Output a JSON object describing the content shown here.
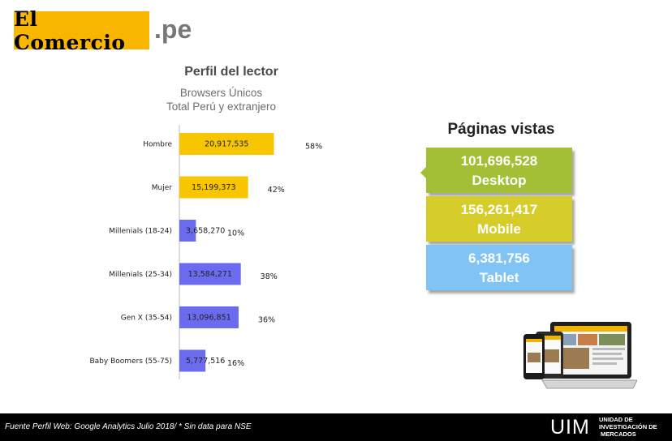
{
  "header": {
    "logo_text": "El Comercio",
    "logo_suffix": ".pe"
  },
  "chart_data": {
    "type": "bar",
    "orientation": "horizontal",
    "title": "Perfil del lector",
    "subtitle_line1": "Browsers Únicos",
    "subtitle_line2": "Total Perú y extranjero",
    "categories": [
      "Hombre",
      "Mujer",
      "Millenials (18-24)",
      "Millenials (25-34)",
      "Gen X (35-54)",
      "Baby Boomers (55-75)"
    ],
    "values": [
      20917535,
      15199373,
      3658270,
      13584271,
      13096851,
      5777516
    ],
    "value_labels": [
      "20,917,535",
      "15,199,373",
      "3,658,270",
      "13,584,271",
      "13,096,851",
      "5,777,516"
    ],
    "percent_labels": [
      "58%",
      "42%",
      "10%",
      "38%",
      "36%",
      "16%"
    ],
    "colors": [
      "#f8c600",
      "#f8c600",
      "#6b6bf0",
      "#6b6bf0",
      "#6b6bf0",
      "#6b6bf0"
    ],
    "grid": false,
    "legend": "none"
  },
  "page_views": {
    "title": "Páginas vistas",
    "items": [
      {
        "value": "101,696,528",
        "label": "Desktop",
        "color": "#a3bf35"
      },
      {
        "value": "156,261,417",
        "label": "Mobile",
        "color": "#d6cd2a"
      },
      {
        "value": "6,381,756",
        "label": "Tablet",
        "color": "#7fc4f5"
      }
    ]
  },
  "footer": {
    "source": "Fuente Perfil Web: Google Analytics Julio 2018/  * Sin data para NSE",
    "brand": "UIM",
    "brand_line1": "UNIDAD DE",
    "brand_line2": "INVESTIGACIÓN DE",
    "brand_line3": "MERCADOS"
  }
}
